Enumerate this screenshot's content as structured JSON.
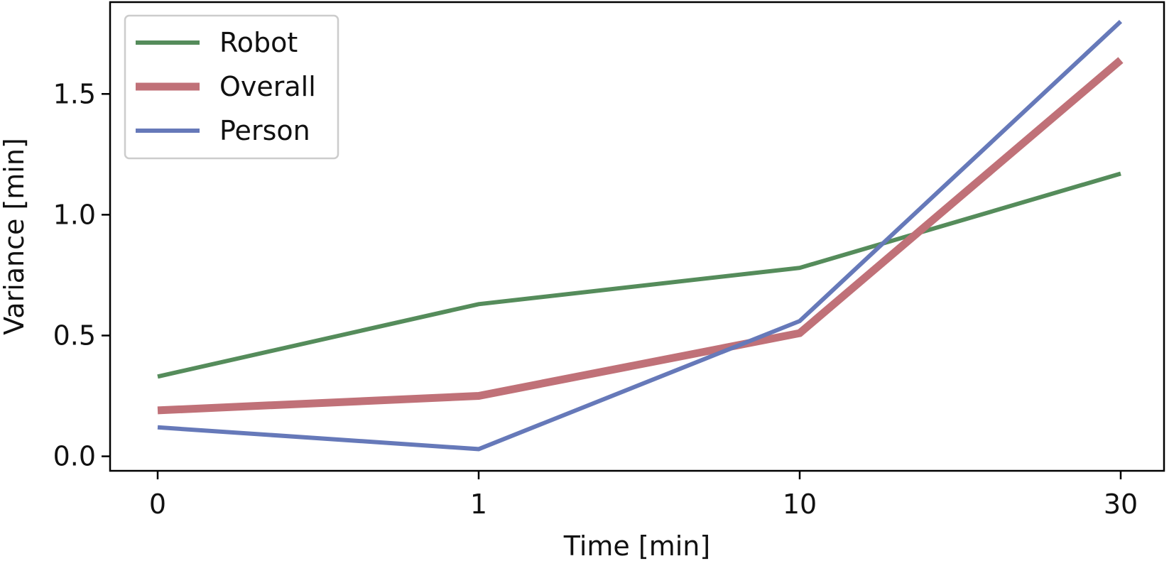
{
  "chart_data": {
    "type": "line",
    "title": "",
    "xlabel": "Time [min]",
    "ylabel": "Variance [min]",
    "categories": [
      "0",
      "1",
      "10",
      "30"
    ],
    "ylim": [
      -0.06,
      1.88
    ],
    "yticks": [
      0.0,
      0.5,
      1.0,
      1.5
    ],
    "ytick_labels": [
      "0.0",
      "0.5",
      "1.0",
      "1.5"
    ],
    "grid": false,
    "legend_position": "top-left",
    "series": [
      {
        "name": "Robot",
        "color": "#558c5b",
        "values": [
          0.33,
          0.63,
          0.78,
          1.17
        ]
      },
      {
        "name": "Overall",
        "color": "#c07178",
        "values": [
          0.19,
          0.25,
          0.51,
          1.64
        ]
      },
      {
        "name": "Person",
        "color": "#6679b9",
        "values": [
          0.12,
          0.03,
          0.56,
          1.8
        ]
      }
    ]
  }
}
